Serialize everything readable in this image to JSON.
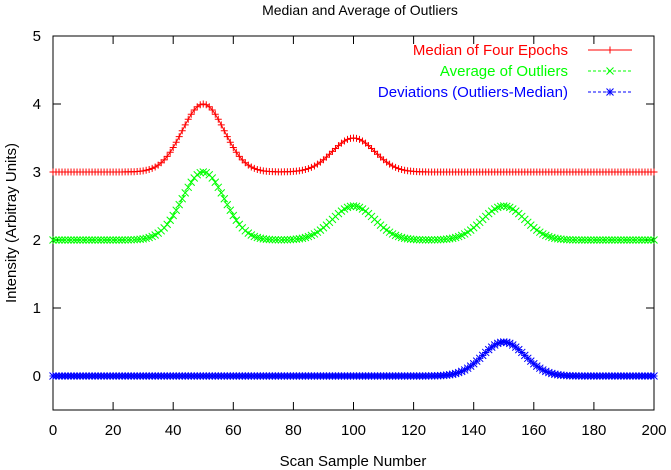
{
  "chart_data": {
    "type": "line",
    "title": "Median and Average of Outliers",
    "xlabel": "Scan Sample Number",
    "ylabel": "Intensity (Arbitray Units)",
    "xlim": [
      0,
      200
    ],
    "ylim": [
      -0.5,
      5
    ],
    "xticks": [
      0,
      20,
      40,
      60,
      80,
      100,
      120,
      140,
      160,
      180,
      200
    ],
    "yticks": [
      0,
      1,
      2,
      3,
      4,
      5
    ],
    "legend_position": "top-right",
    "grid": false,
    "x": {
      "start": 0,
      "end": 200,
      "step": 1
    },
    "series": [
      {
        "name": "Median of Four Epochs",
        "color": "#ff0000",
        "marker": "plus",
        "baseline": 3,
        "peaks": [
          {
            "center": 50,
            "height": 1.0,
            "sigma": 7
          },
          {
            "center": 100,
            "height": 0.5,
            "sigma": 7
          }
        ]
      },
      {
        "name": "Average of Outliers",
        "color": "#00ff00",
        "marker": "cross",
        "baseline": 2,
        "peaks": [
          {
            "center": 50,
            "height": 1.0,
            "sigma": 7
          },
          {
            "center": 100,
            "height": 0.5,
            "sigma": 7
          },
          {
            "center": 150,
            "height": 0.5,
            "sigma": 7
          }
        ]
      },
      {
        "name": "Deviations (Outliers-Median)",
        "color": "#0000ff",
        "marker": "star",
        "baseline": 0,
        "peaks": [
          {
            "center": 150,
            "height": 0.5,
            "sigma": 7
          }
        ]
      }
    ]
  }
}
